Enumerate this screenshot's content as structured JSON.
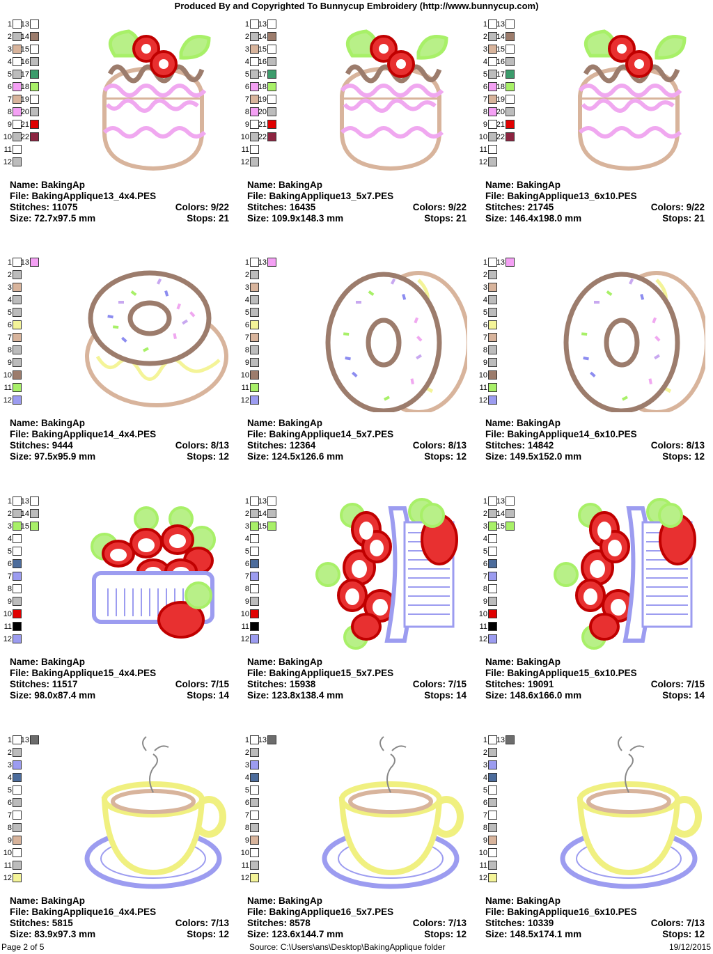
{
  "header": "Produced By and Copyrighted To Bunnycup Embroidery (http://www.bunnycup.com)",
  "labels": {
    "name": "Name:",
    "file": "File:",
    "stitches": "Stitches:",
    "size": "Size:",
    "colors": "Colors:",
    "stops": "Stops:"
  },
  "footer": {
    "page": "Page 2 of 5",
    "source": "Source: C:\\Users\\ans\\Desktop\\BakingApplique folder",
    "date": "19/12/2015"
  },
  "palettes": [
    {
      "left": [
        "#ffffff",
        "#bcbcbc",
        "#d8b49c",
        "#ffffff",
        "#bcbcbc",
        "#f4a0f4",
        "#d8b49c",
        "#f4a0f4",
        "#ffffff",
        "#bcbcbc",
        "#ffffff",
        "#bcbcbc"
      ],
      "right": [
        "#ffffff",
        "#9c7c6c",
        "#ffffff",
        "#bcbcbc",
        "#3c9c6c",
        "#a8f068",
        "#ffffff",
        "#bcbcbc",
        "#e00000",
        "#8c2440"
      ]
    },
    {
      "left": [
        "#ffffff",
        "#bcbcbc",
        "#d8b49c",
        "#bcbcbc",
        "#bcbcbc",
        "#f4f498",
        "#d8b49c",
        "#bcbcbc",
        "#bcbcbc",
        "#9c7c6c",
        "#a8f068",
        "#9c9cf0"
      ],
      "right": [
        "#f4a0f4"
      ]
    },
    {
      "left": [
        "#ffffff",
        "#bcbcbc",
        "#a8f068",
        "#ffffff",
        "#ffffff",
        "#4c6c9c",
        "#9c9cf0",
        "#ffffff",
        "#bcbcbc",
        "#e00000",
        "#000000",
        "#9c9cf0"
      ],
      "right": [
        "#ffffff",
        "#bcbcbc",
        "#a8f068"
      ]
    },
    {
      "left": [
        "#ffffff",
        "#bcbcbc",
        "#9c9cf0",
        "#4c6c9c",
        "#ffffff",
        "#bcbcbc",
        "#ffffff",
        "#bcbcbc",
        "#d8b49c",
        "#ffffff",
        "#bcbcbc",
        "#f4f498"
      ],
      "right": [
        "#6c6c6c"
      ]
    }
  ],
  "designs": [
    {
      "name": "BakingAp",
      "file": "BakingApplique13_4x4.PES",
      "stitches": "11075",
      "size": "72.7x97.5 mm",
      "colors": "9/22",
      "stops": "21"
    },
    {
      "name": "BakingAp",
      "file": "BakingApplique13_5x7.PES",
      "stitches": "16435",
      "size": "109.9x148.3 mm",
      "colors": "9/22",
      "stops": "21"
    },
    {
      "name": "BakingAp",
      "file": "BakingApplique13_6x10.PES",
      "stitches": "21745",
      "size": "146.4x198.0 mm",
      "colors": "9/22",
      "stops": "21"
    },
    {
      "name": "BakingAp",
      "file": "BakingApplique14_4x4.PES",
      "stitches": "9444",
      "size": "97.5x95.9 mm",
      "colors": "8/13",
      "stops": "12"
    },
    {
      "name": "BakingAp",
      "file": "BakingApplique14_5x7.PES",
      "stitches": "12364",
      "size": "124.5x126.6 mm",
      "colors": "8/13",
      "stops": "12"
    },
    {
      "name": "BakingAp",
      "file": "BakingApplique14_6x10.PES",
      "stitches": "14842",
      "size": "149.5x152.0 mm",
      "colors": "8/13",
      "stops": "12"
    },
    {
      "name": "BakingAp",
      "file": "BakingApplique15_4x4.PES",
      "stitches": "11517",
      "size": "98.0x87.4 mm",
      "colors": "7/15",
      "stops": "14"
    },
    {
      "name": "BakingAp",
      "file": "BakingApplique15_5x7.PES",
      "stitches": "15938",
      "size": "123.8x138.4 mm",
      "colors": "7/15",
      "stops": "14"
    },
    {
      "name": "BakingAp",
      "file": "BakingApplique15_6x10.PES",
      "stitches": "19091",
      "size": "148.6x166.0 mm",
      "colors": "7/15",
      "stops": "14"
    },
    {
      "name": "BakingAp",
      "file": "BakingApplique16_4x4.PES",
      "stitches": "5815",
      "size": "83.9x97.3 mm",
      "colors": "7/13",
      "stops": "12"
    },
    {
      "name": "BakingAp",
      "file": "BakingApplique16_5x7.PES",
      "stitches": "8578",
      "size": "123.6x144.7 mm",
      "colors": "7/13",
      "stops": "12"
    },
    {
      "name": "BakingAp",
      "file": "BakingApplique16_6x10.PES",
      "stitches": "10339",
      "size": "148.5x174.1 mm",
      "colors": "7/13",
      "stops": "12"
    }
  ]
}
